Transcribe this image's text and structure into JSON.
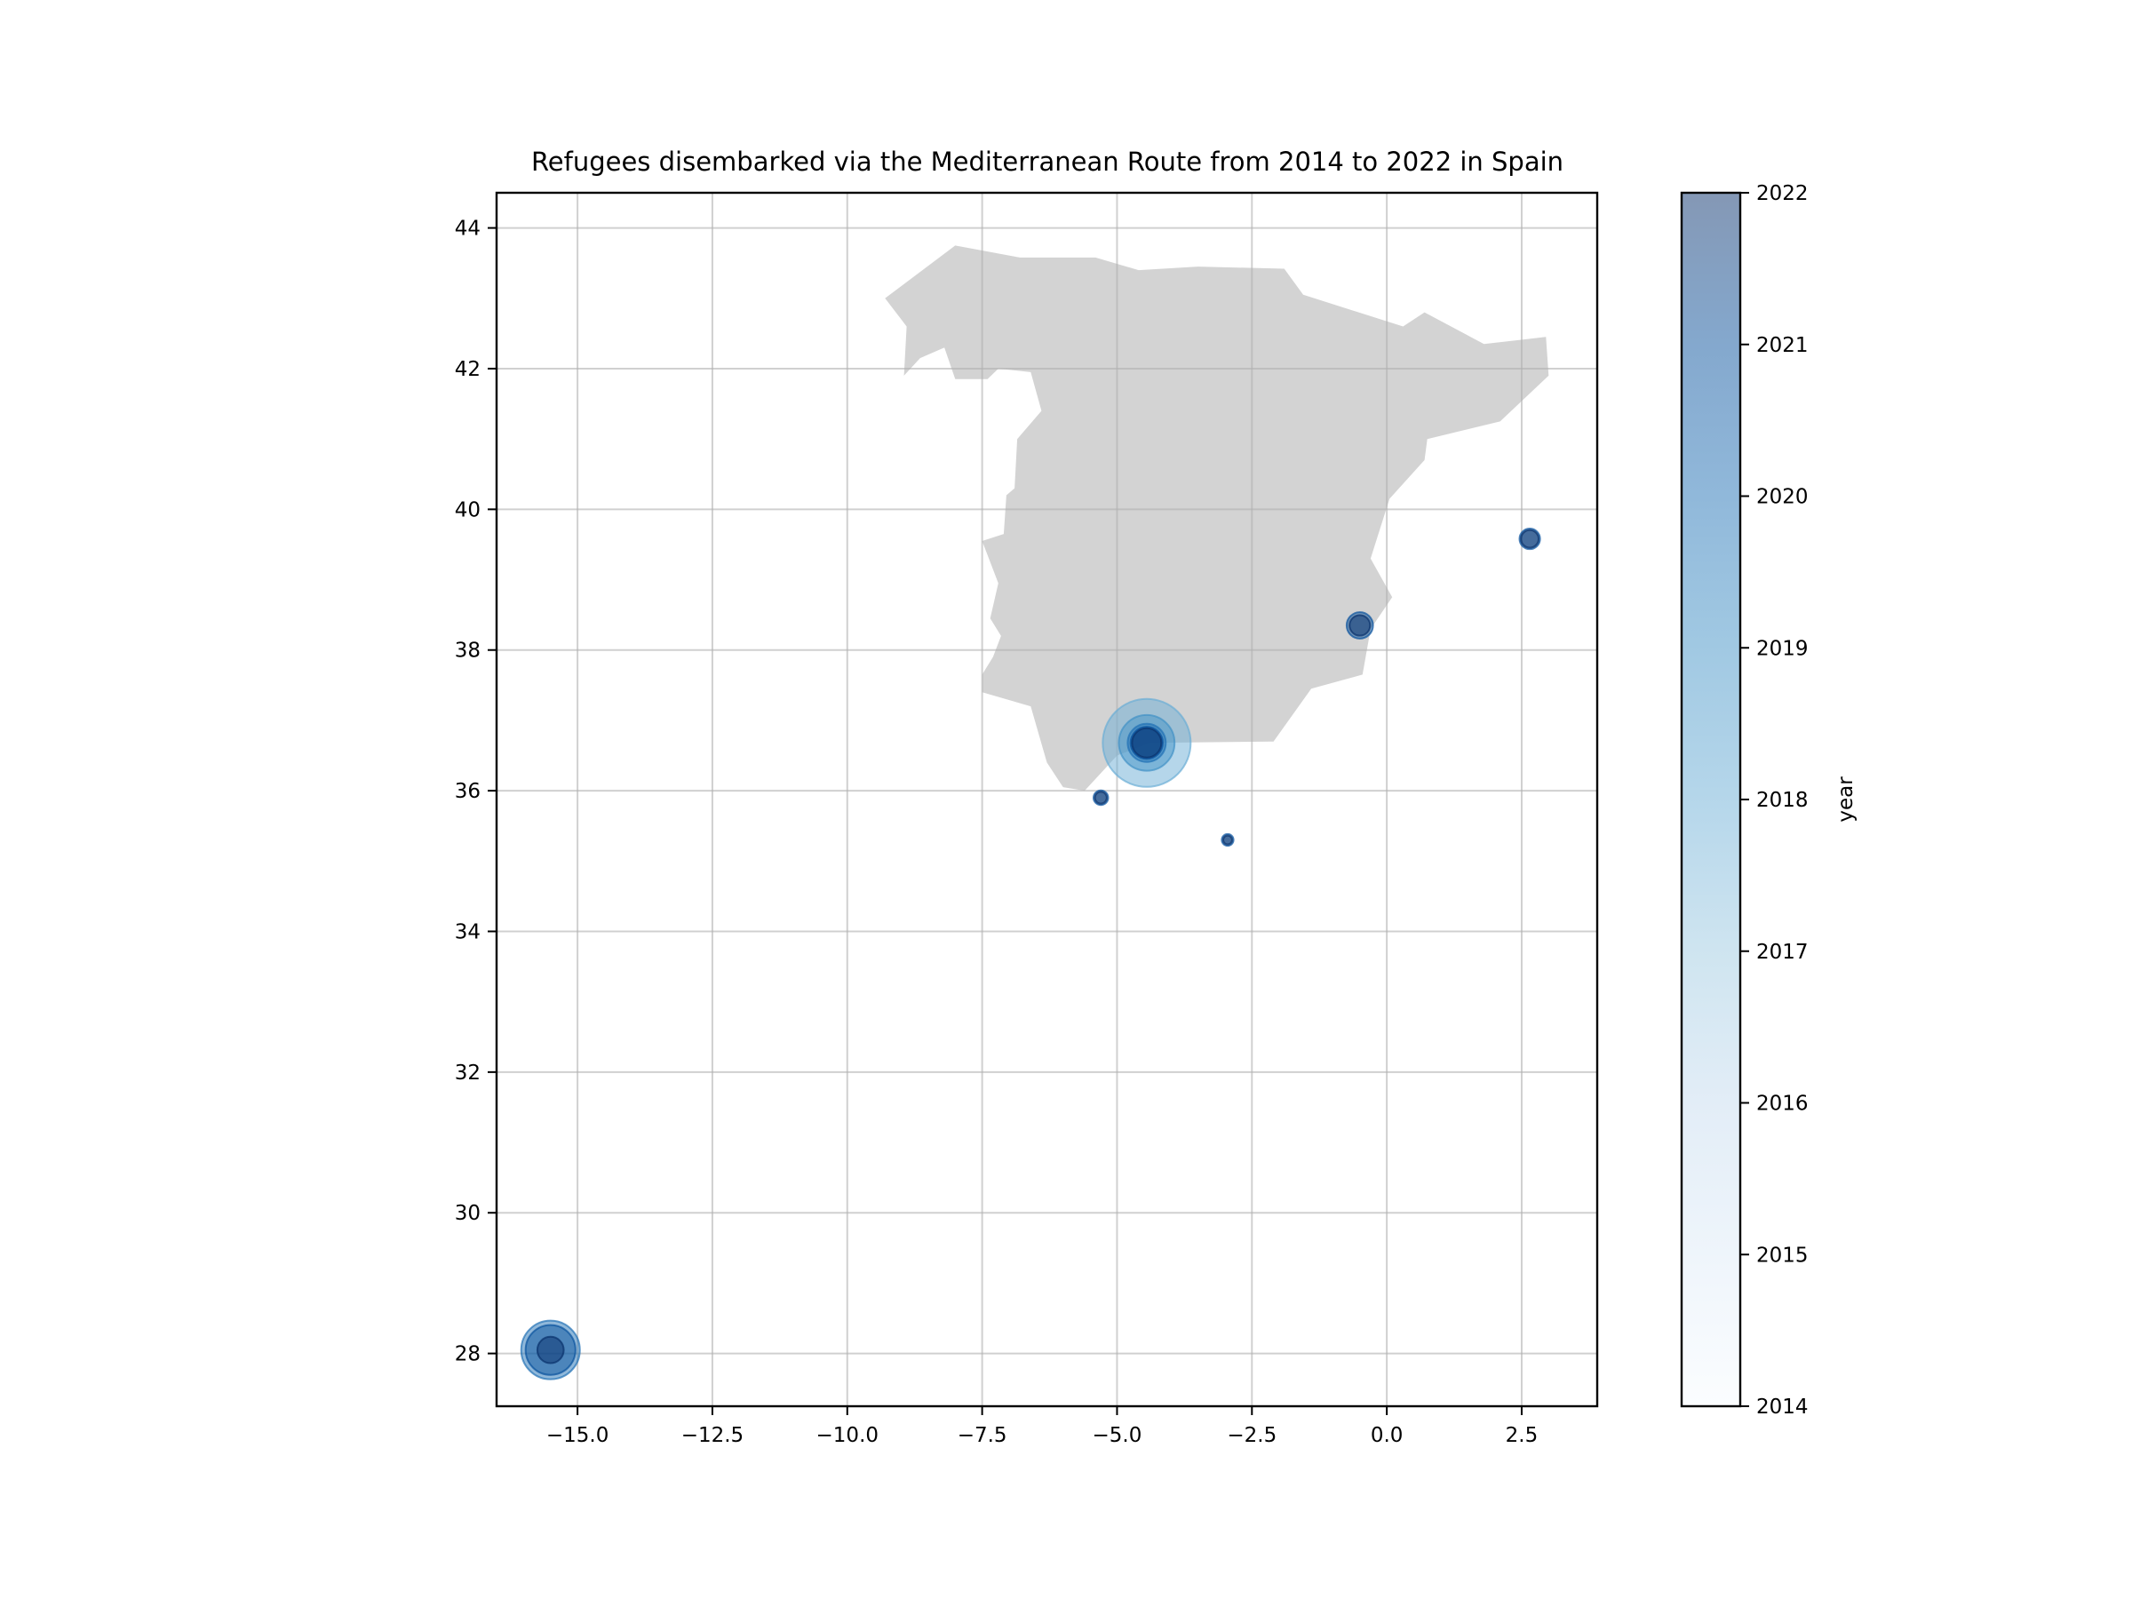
{
  "chart_data": {
    "type": "scatter",
    "title": "Refugees disembarked via the Mediterranean Route from 2014 to 2022 in Spain",
    "xlabel": "",
    "ylabel": "",
    "xlim": [
      -16.5,
      3.9
    ],
    "ylim": [
      27.25,
      44.5
    ],
    "xticks": [
      "−15.0",
      "−12.5",
      "−10.0",
      "−7.5",
      "−5.0",
      "−2.5",
      "0.0",
      "2.5"
    ],
    "xtick_values": [
      -15.0,
      -12.5,
      -10.0,
      -7.5,
      -5.0,
      -2.5,
      0.0,
      2.5
    ],
    "yticks": [
      "28",
      "30",
      "32",
      "34",
      "36",
      "38",
      "40",
      "42",
      "44"
    ],
    "ytick_values": [
      28,
      30,
      32,
      34,
      36,
      38,
      40,
      42,
      44
    ],
    "grid": true,
    "basemap_color": "#d3d3d3",
    "colormap": "Blues",
    "marker_alpha": 0.5,
    "spain_outline": [
      [
        -9.3,
        43.0
      ],
      [
        -8.0,
        43.75
      ],
      [
        -6.8,
        43.58
      ],
      [
        -5.4,
        43.58
      ],
      [
        -4.6,
        43.4
      ],
      [
        -3.5,
        43.45
      ],
      [
        -1.9,
        43.42
      ],
      [
        -1.55,
        43.05
      ],
      [
        0.3,
        42.6
      ],
      [
        0.7,
        42.8
      ],
      [
        1.8,
        42.35
      ],
      [
        2.95,
        42.45
      ],
      [
        3.0,
        41.9
      ],
      [
        2.1,
        41.25
      ],
      [
        0.75,
        41.0
      ],
      [
        0.7,
        40.7
      ],
      [
        0.05,
        40.15
      ],
      [
        -0.3,
        39.3
      ],
      [
        0.1,
        38.75
      ],
      [
        -0.3,
        38.3
      ],
      [
        -0.45,
        37.65
      ],
      [
        -1.4,
        37.45
      ],
      [
        -2.1,
        36.7
      ],
      [
        -4.4,
        36.68
      ],
      [
        -5.0,
        36.5
      ],
      [
        -5.6,
        36.0
      ],
      [
        -6.0,
        36.05
      ],
      [
        -6.3,
        36.4
      ],
      [
        -6.6,
        37.2
      ],
      [
        -7.5,
        37.4
      ],
      [
        -7.5,
        37.65
      ],
      [
        -7.3,
        37.9
      ],
      [
        -7.15,
        38.2
      ],
      [
        -7.35,
        38.45
      ],
      [
        -7.2,
        38.95
      ],
      [
        -7.5,
        39.55
      ],
      [
        -7.1,
        39.65
      ],
      [
        -7.05,
        40.2
      ],
      [
        -6.9,
        40.3
      ],
      [
        -6.85,
        41.0
      ],
      [
        -6.4,
        41.4
      ],
      [
        -6.6,
        41.95
      ],
      [
        -7.2,
        42.0
      ],
      [
        -7.4,
        41.85
      ],
      [
        -8.0,
        41.85
      ],
      [
        -8.2,
        42.3
      ],
      [
        -8.65,
        42.15
      ],
      [
        -8.95,
        41.9
      ],
      [
        -8.9,
        42.6
      ]
    ],
    "points": [
      {
        "x": -4.45,
        "y": 36.68,
        "size": 30,
        "year": 2018
      },
      {
        "x": -4.45,
        "y": 36.68,
        "size": 19,
        "year": 2019
      },
      {
        "x": -4.45,
        "y": 36.68,
        "size": 13,
        "year": 2020
      },
      {
        "x": -4.45,
        "y": 36.68,
        "size": 11,
        "year": 2021
      },
      {
        "x": -4.45,
        "y": 36.68,
        "size": 10,
        "year": 2022
      },
      {
        "x": -15.5,
        "y": 28.05,
        "size": 20,
        "year": 2020
      },
      {
        "x": -15.5,
        "y": 28.05,
        "size": 17,
        "year": 2021
      },
      {
        "x": -15.5,
        "y": 28.05,
        "size": 9,
        "year": 2022
      },
      {
        "x": -0.5,
        "y": 38.35,
        "size": 9,
        "year": 2021
      },
      {
        "x": -0.5,
        "y": 38.35,
        "size": 7,
        "year": 2022
      },
      {
        "x": 2.65,
        "y": 39.58,
        "size": 7,
        "year": 2021
      },
      {
        "x": 2.65,
        "y": 39.58,
        "size": 6,
        "year": 2022
      },
      {
        "x": -5.3,
        "y": 35.9,
        "size": 5,
        "year": 2021
      },
      {
        "x": -5.3,
        "y": 35.9,
        "size": 4,
        "year": 2022
      },
      {
        "x": -2.95,
        "y": 35.3,
        "size": 4,
        "year": 2021
      },
      {
        "x": -2.95,
        "y": 35.3,
        "size": 3,
        "year": 2022
      }
    ],
    "colorbar": {
      "label": "year",
      "min": 2014,
      "max": 2022,
      "ticks": [
        "2014",
        "2015",
        "2016",
        "2017",
        "2018",
        "2019",
        "2020",
        "2021",
        "2022"
      ],
      "tick_values": [
        2014,
        2015,
        2016,
        2017,
        2018,
        2019,
        2020,
        2021,
        2022
      ]
    }
  }
}
